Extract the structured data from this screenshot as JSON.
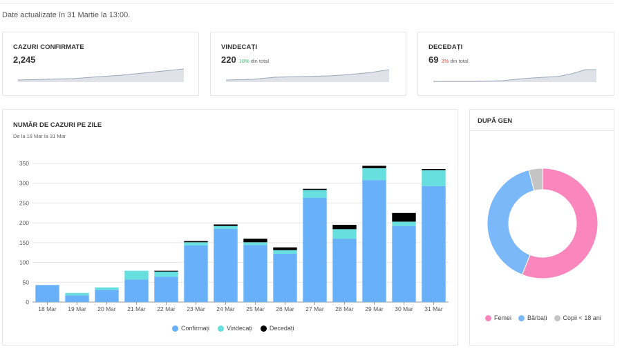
{
  "header": {
    "updated_text": "Date actualizate în 31 Martie la 13:00."
  },
  "stats": [
    {
      "title": "CAZURI CONFIRMATE",
      "value": "2,245",
      "pct": "",
      "pct_rest": "",
      "pct_color": ""
    },
    {
      "title": "VINDECAȚI",
      "value": "220",
      "pct": "10%",
      "pct_rest": "din total",
      "pct_color": "#3fb36b"
    },
    {
      "title": "DECEDAȚI",
      "value": "69",
      "pct": "3%",
      "pct_rest": "din total",
      "pct_color": "#e2453c"
    }
  ],
  "daily": {
    "title": "NUMĂR DE CAZURI PE ZILE",
    "subtitle": "De la 18 Mar la 31 Mar",
    "legend": [
      "Confirmați",
      "Vindecați",
      "Decedați"
    ]
  },
  "gender": {
    "title": "DUPĂ GEN",
    "legend": [
      "Femei",
      "Bărbați",
      "Copii < 18 ani"
    ]
  },
  "colors": {
    "confirmed": "#68b0f7",
    "recovered": "#67dfdf",
    "deceased": "#000000",
    "women": "#f987bd",
    "men": "#7ab8f9",
    "children": "#c4c4c4"
  },
  "chart_data": [
    {
      "type": "bar",
      "stacked": true,
      "categories": [
        "18 Mar",
        "19 Mar",
        "20 Mar",
        "21 Mar",
        "22 Mar",
        "23 Mar",
        "24 Mar",
        "25 Mar",
        "26 Mar",
        "27 Mar",
        "28 Mar",
        "29 Mar",
        "30 Mar",
        "31 Mar"
      ],
      "series": [
        {
          "name": "Confirmați",
          "values": [
            43,
            17,
            31,
            57,
            64,
            143,
            185,
            144,
            122,
            263,
            160,
            308,
            192,
            293
          ]
        },
        {
          "name": "Vindecați",
          "values": [
            0,
            6,
            6,
            22,
            13,
            8,
            7,
            7,
            9,
            20,
            24,
            30,
            11,
            40
          ]
        },
        {
          "name": "Decedați",
          "values": [
            0,
            0,
            0,
            0,
            2,
            3,
            4,
            9,
            7,
            3,
            11,
            6,
            22,
            3
          ]
        }
      ],
      "ylim": [
        0,
        350
      ],
      "yticks": [
        0,
        50,
        100,
        150,
        200,
        250,
        300,
        350
      ],
      "grid": true,
      "legend_position": "bottom"
    },
    {
      "type": "pie",
      "donut": true,
      "labels": [
        "Femei",
        "Bărbați",
        "Copii < 18 ani"
      ],
      "values": [
        56,
        40,
        4
      ],
      "legend_position": "bottom"
    }
  ]
}
